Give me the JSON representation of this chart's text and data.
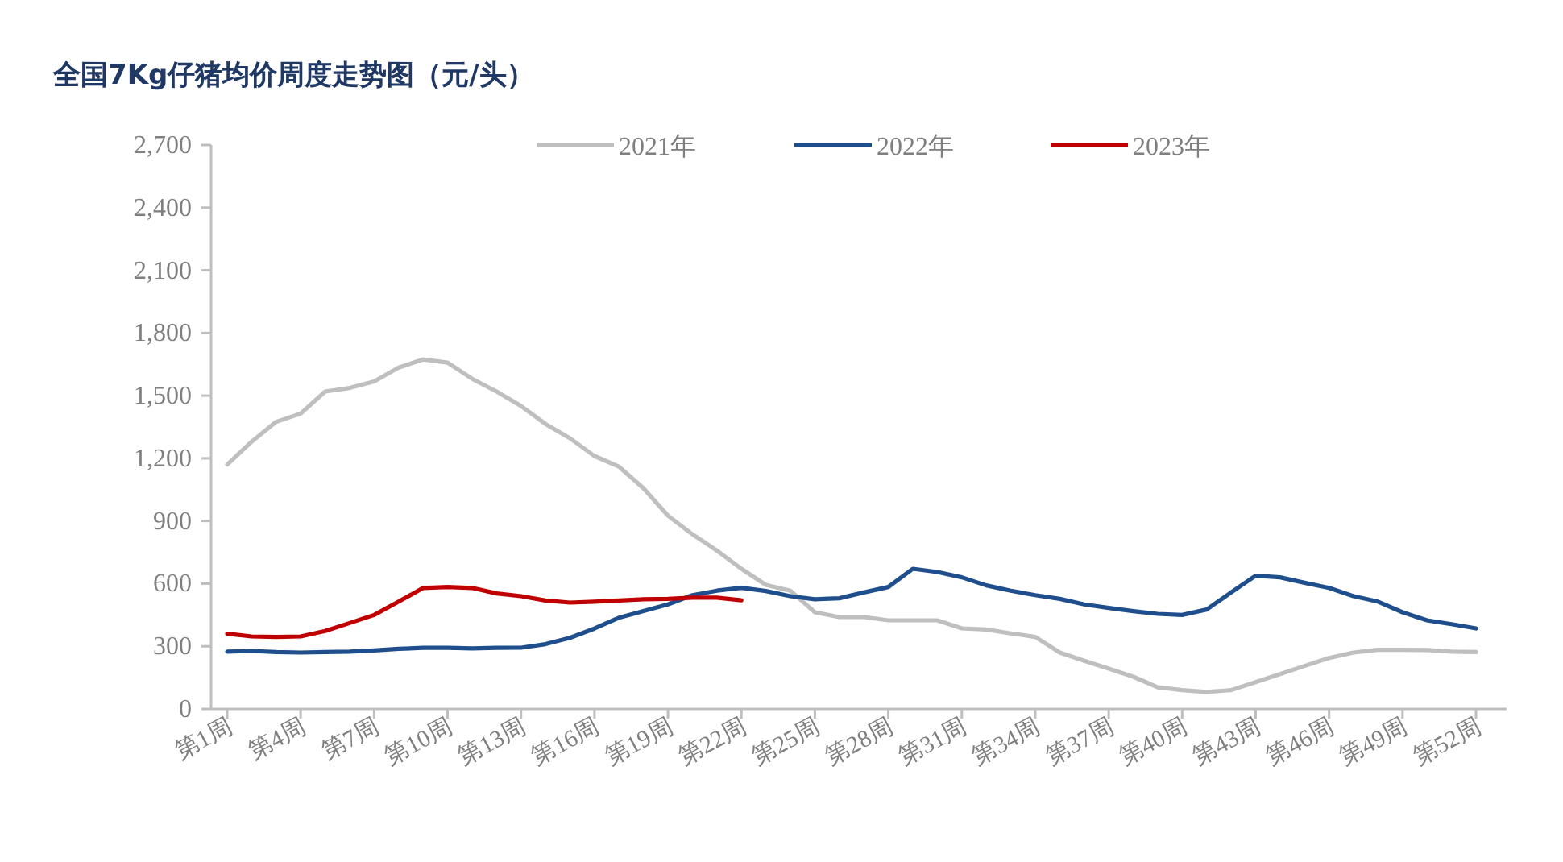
{
  "chart_data": {
    "type": "line",
    "title": "全国7Kg仔猪均价周度走势图（元/头）",
    "categories": [
      "第1周",
      null,
      null,
      "第4周",
      null,
      null,
      "第7周",
      null,
      null,
      "第10周",
      null,
      null,
      "第13周",
      null,
      null,
      "第16周",
      null,
      null,
      "第19周",
      null,
      null,
      "第22周",
      null,
      null,
      "第25周",
      null,
      null,
      "第28周",
      null,
      null,
      "第31周",
      null,
      null,
      "第34周",
      null,
      null,
      "第37周",
      null,
      null,
      "第40周",
      null,
      null,
      "第43周",
      null,
      null,
      "第46周",
      null,
      null,
      "第49周",
      null,
      null,
      "第52周"
    ],
    "series": [
      {
        "name": "2021年",
        "color": "#bfbfbf",
        "values": [
          1170,
          1280,
          1375,
          1414,
          1520,
          1537,
          1568,
          1635,
          1673,
          1658,
          1581,
          1520,
          1450,
          1365,
          1296,
          1211,
          1160,
          1057,
          926,
          836,
          758,
          671,
          594,
          566,
          463,
          440,
          440,
          424,
          424,
          424,
          386,
          380,
          362,
          345,
          270,
          231,
          193,
          154,
          103,
          90,
          82,
          90,
          128,
          167,
          206,
          244,
          270,
          283,
          283,
          282,
          275,
          272
        ]
      },
      {
        "name": "2022年",
        "color": "#1f4e8c",
        "values": [
          275,
          278,
          272,
          270,
          272,
          275,
          280,
          288,
          292,
          292,
          290,
          292,
          293,
          310,
          340,
          385,
          437,
          468,
          501,
          545,
          566,
          580,
          565,
          540,
          525,
          530,
          558,
          584,
          671,
          656,
          630,
          592,
          566,
          545,
          527,
          501,
          484,
          468,
          455,
          450,
          476,
          558,
          638,
          630,
          604,
          579,
          540,
          514,
          463,
          424,
          406,
          386
        ]
      },
      {
        "name": "2023年",
        "color": "#c00000",
        "values": [
          360,
          347,
          345,
          347,
          373,
          411,
          450,
          514,
          579,
          584,
          579,
          553,
          540,
          519,
          509,
          514,
          519,
          525,
          527,
          533,
          533,
          520,
          null,
          null,
          null,
          null,
          null,
          null,
          null,
          null,
          null,
          null,
          null,
          null,
          null,
          null,
          null,
          null,
          null,
          null,
          null,
          null,
          null,
          null,
          null,
          null,
          null,
          null,
          null,
          null,
          null,
          null
        ]
      }
    ],
    "ylim": [
      0,
      2700
    ],
    "yticks": [
      0,
      300,
      600,
      900,
      {
        "value": 1200,
        "label": "1,200"
      },
      {
        "value": 1500,
        "label": "1,500"
      },
      {
        "value": 1800,
        "label": "1,800"
      },
      {
        "value": 2100,
        "label": "2,100"
      },
      {
        "value": 2400,
        "label": "2,400"
      },
      {
        "value": 2700,
        "label": "2,700"
      }
    ],
    "legend": "top"
  }
}
